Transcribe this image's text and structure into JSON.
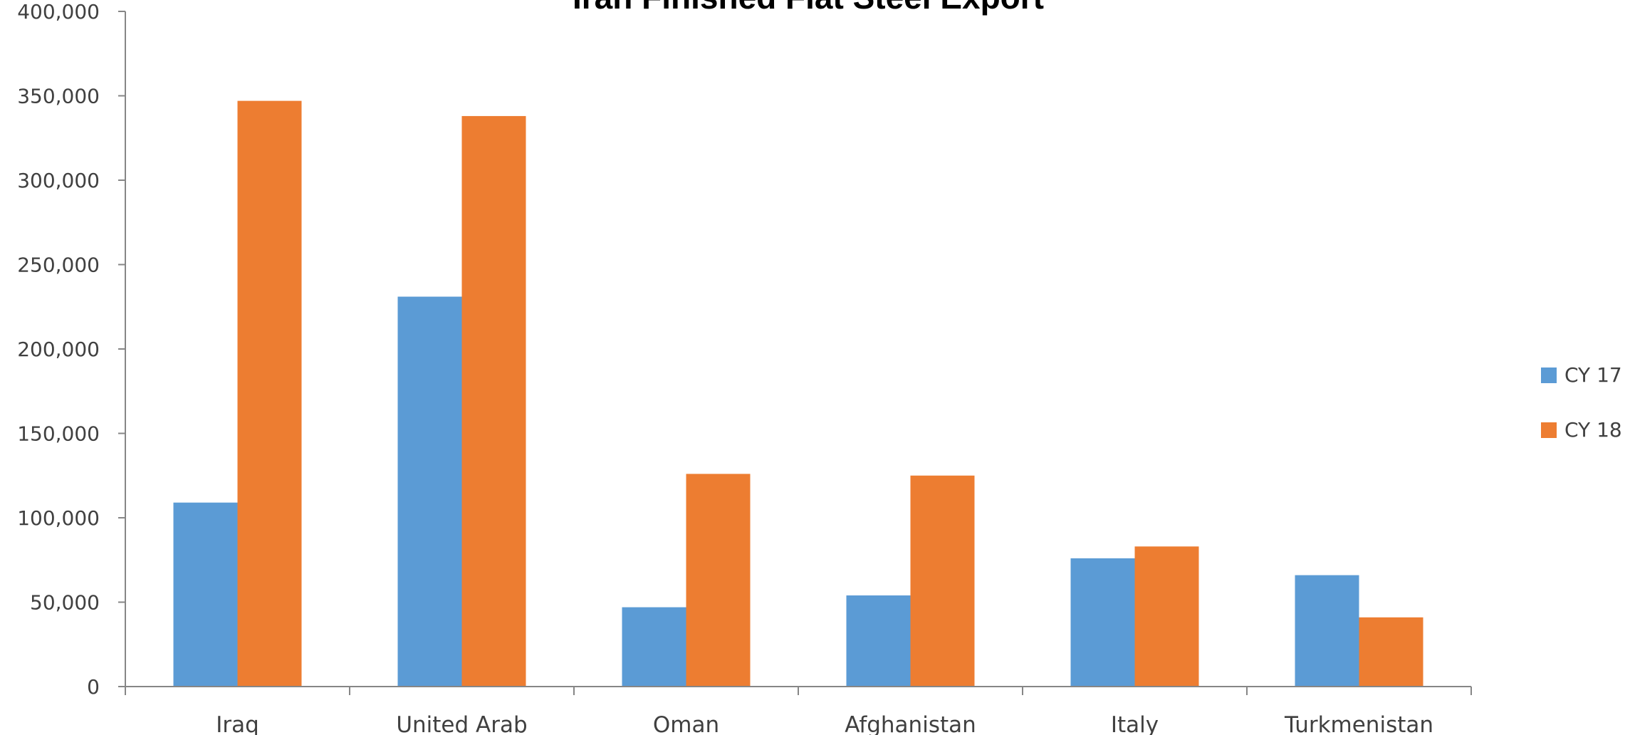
{
  "chart_data": {
    "type": "bar",
    "title": "Iran Finished Flat Steel Export",
    "xlabel": "",
    "ylabel": "",
    "categories": [
      "Iraq",
      "United Arab",
      "Oman",
      "Afghanistan",
      "Italy",
      "Turkmenistan"
    ],
    "series": [
      {
        "name": "CY 17",
        "color": "#5B9BD5",
        "values": [
          109000,
          231000,
          47000,
          54000,
          76000,
          66000
        ]
      },
      {
        "name": "CY 18",
        "color": "#ED7D31",
        "values": [
          347000,
          338000,
          126000,
          125000,
          83000,
          41000
        ]
      }
    ],
    "ylim": [
      0,
      400000
    ],
    "yticks": [
      0,
      50000,
      100000,
      150000,
      200000,
      250000,
      300000,
      350000,
      400000
    ],
    "ytick_labels": [
      "0",
      "50,000",
      "100,000",
      "150,000",
      "200,000",
      "250,000",
      "300,000",
      "350,000",
      "400,000"
    ],
    "grid": false,
    "legend": "right"
  }
}
